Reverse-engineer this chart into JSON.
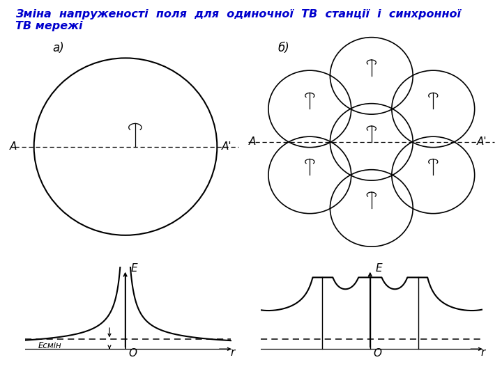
{
  "title_line1": "Зміна  напруженості  поля  для  одиночної  ТВ  станції  і  синхронної",
  "title_line2": "ТВ мережі",
  "title_color": "#0000CD",
  "title_fontsize": 11.5,
  "bg_color": "#FFFFFF",
  "label_a": "а)",
  "label_b": "б)",
  "label_A_left": "A",
  "label_A_right": "A'",
  "label_E": "E",
  "label_O": "O",
  "label_r": "r",
  "label_Esmin": "Есмін"
}
